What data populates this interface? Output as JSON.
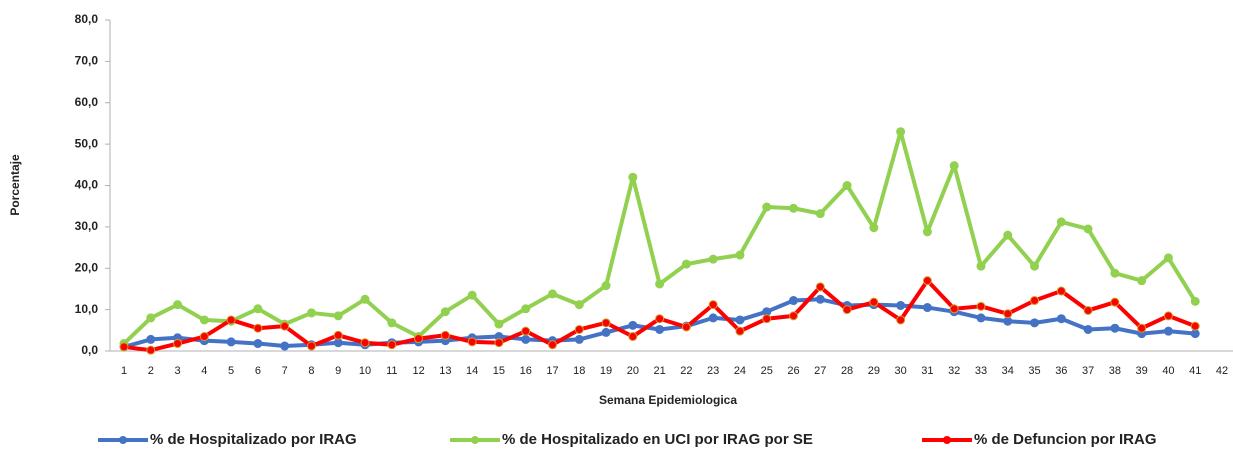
{
  "chart_data": {
    "type": "line",
    "y_label": "Porcentaje",
    "x_label": "Semana Epidemiologica",
    "categories": [
      "1",
      "2",
      "3",
      "4",
      "5",
      "6",
      "7",
      "8",
      "9",
      "10",
      "11",
      "12",
      "13",
      "14",
      "15",
      "16",
      "17",
      "18",
      "19",
      "20",
      "21",
      "22",
      "23",
      "24",
      "25",
      "26",
      "27",
      "28",
      "29",
      "30",
      "31",
      "32",
      "33",
      "34",
      "35",
      "36",
      "37",
      "38",
      "39",
      "40",
      "41",
      "42"
    ],
    "ylim": [
      0,
      80
    ],
    "yticks": [
      {
        "value": 0,
        "label": "0,0"
      },
      {
        "value": 10,
        "label": "10,0"
      },
      {
        "value": 20,
        "label": "20,0"
      },
      {
        "value": 30,
        "label": "30,0"
      },
      {
        "value": 40,
        "label": "40,0"
      },
      {
        "value": 50,
        "label": "50,0"
      },
      {
        "value": 60,
        "label": "60,0"
      },
      {
        "value": 70,
        "label": "70,0"
      },
      {
        "value": 80,
        "label": "80,0"
      }
    ],
    "grid": false,
    "legend": "bottom",
    "series": [
      {
        "name": "% de Hospitalizado por IRAG",
        "color": "#4472c4",
        "values": [
          1.0,
          2.8,
          3.2,
          2.5,
          2.2,
          1.8,
          1.2,
          1.5,
          2.0,
          1.5,
          2.0,
          2.2,
          2.5,
          3.2,
          3.5,
          2.8,
          2.5,
          2.8,
          4.5,
          6.2,
          5.2,
          6.0,
          8.0,
          7.5,
          9.5,
          12.2,
          12.5,
          11.0,
          11.2,
          11.0,
          10.5,
          9.5,
          8.0,
          7.2,
          6.8,
          7.8,
          5.2,
          5.5,
          4.2,
          4.8,
          4.2,
          null
        ]
      },
      {
        "name": "% de Hospitalizado en UCI por IRAG por SE",
        "color": "#92d050",
        "values": [
          1.8,
          8.0,
          11.2,
          7.5,
          7.2,
          10.2,
          6.5,
          9.2,
          8.5,
          12.5,
          6.8,
          3.5,
          9.5,
          13.5,
          6.5,
          10.2,
          13.8,
          11.2,
          15.8,
          42.0,
          16.2,
          21.0,
          22.2,
          23.2,
          34.8,
          34.5,
          33.2,
          40.0,
          29.8,
          53.0,
          28.8,
          44.8,
          20.5,
          28.0,
          20.5,
          31.2,
          29.5,
          18.8,
          17.0,
          22.5,
          12.0,
          null
        ]
      },
      {
        "name": "% de Defuncion por IRAG",
        "color": "#ff0000",
        "values": [
          1.0,
          0.2,
          1.8,
          3.5,
          7.5,
          5.5,
          6.0,
          1.2,
          3.8,
          2.0,
          1.5,
          3.0,
          3.8,
          2.2,
          2.0,
          4.8,
          1.5,
          5.2,
          6.8,
          3.5,
          7.8,
          5.8,
          11.2,
          4.8,
          7.8,
          8.5,
          15.5,
          10.0,
          11.8,
          7.5,
          17.0,
          10.2,
          10.8,
          9.0,
          12.2,
          14.5,
          9.8,
          11.8,
          5.5,
          8.5,
          6.0,
          null
        ]
      }
    ]
  }
}
